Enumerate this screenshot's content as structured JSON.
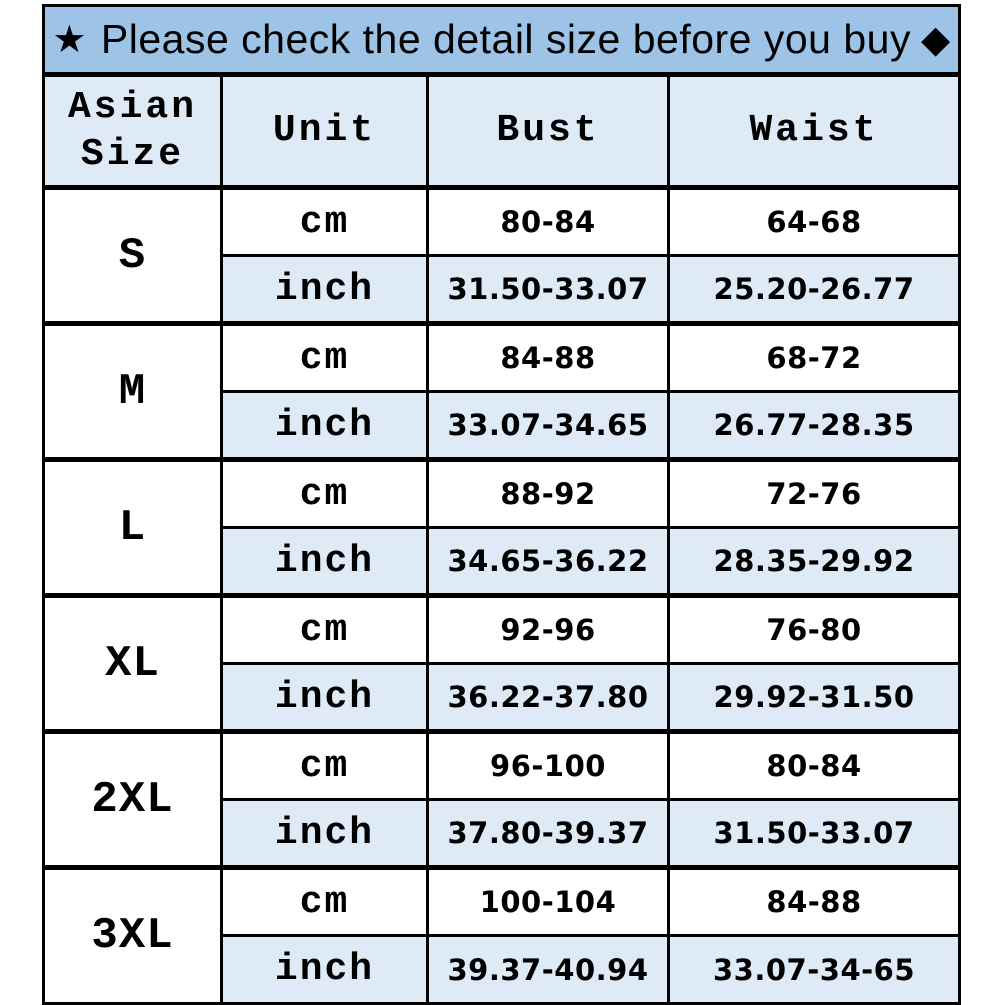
{
  "banner": {
    "star_icon": "★",
    "text": "Please check the detail size before you buy",
    "diamond_icon": "◆"
  },
  "size_chart": {
    "columns": {
      "size": "Asian Size",
      "unit": "Unit",
      "bust": "Bust",
      "waist": "Waist"
    },
    "units": {
      "cm": "cm",
      "inch": "inch"
    },
    "rows": [
      {
        "size": "S",
        "cm_bust": "80-84",
        "cm_waist": "64-68",
        "inch_bust": "31.50-33.07",
        "inch_waist": "25.20-26.77"
      },
      {
        "size": "M",
        "cm_bust": "84-88",
        "cm_waist": "68-72",
        "inch_bust": "33.07-34.65",
        "inch_waist": "26.77-28.35"
      },
      {
        "size": "L",
        "cm_bust": "88-92",
        "cm_waist": "72-76",
        "inch_bust": "34.65-36.22",
        "inch_waist": "28.35-29.92"
      },
      {
        "size": "XL",
        "cm_bust": "92-96",
        "cm_waist": "76-80",
        "inch_bust": "36.22-37.80",
        "inch_waist": "29.92-31.50"
      },
      {
        "size": "2XL",
        "cm_bust": "96-100",
        "cm_waist": "80-84",
        "inch_bust": "37.80-39.37",
        "inch_waist": "31.50-33.07"
      },
      {
        "size": "3XL",
        "cm_bust": "100-104",
        "cm_waist": "84-88",
        "inch_bust": "39.37-40.94",
        "inch_waist": "33.07-34-65"
      }
    ]
  },
  "colors": {
    "banner_bg": "#9dc3e6",
    "highlight_row_bg": "#deebf7",
    "border": "#000000",
    "text": "#000000"
  }
}
